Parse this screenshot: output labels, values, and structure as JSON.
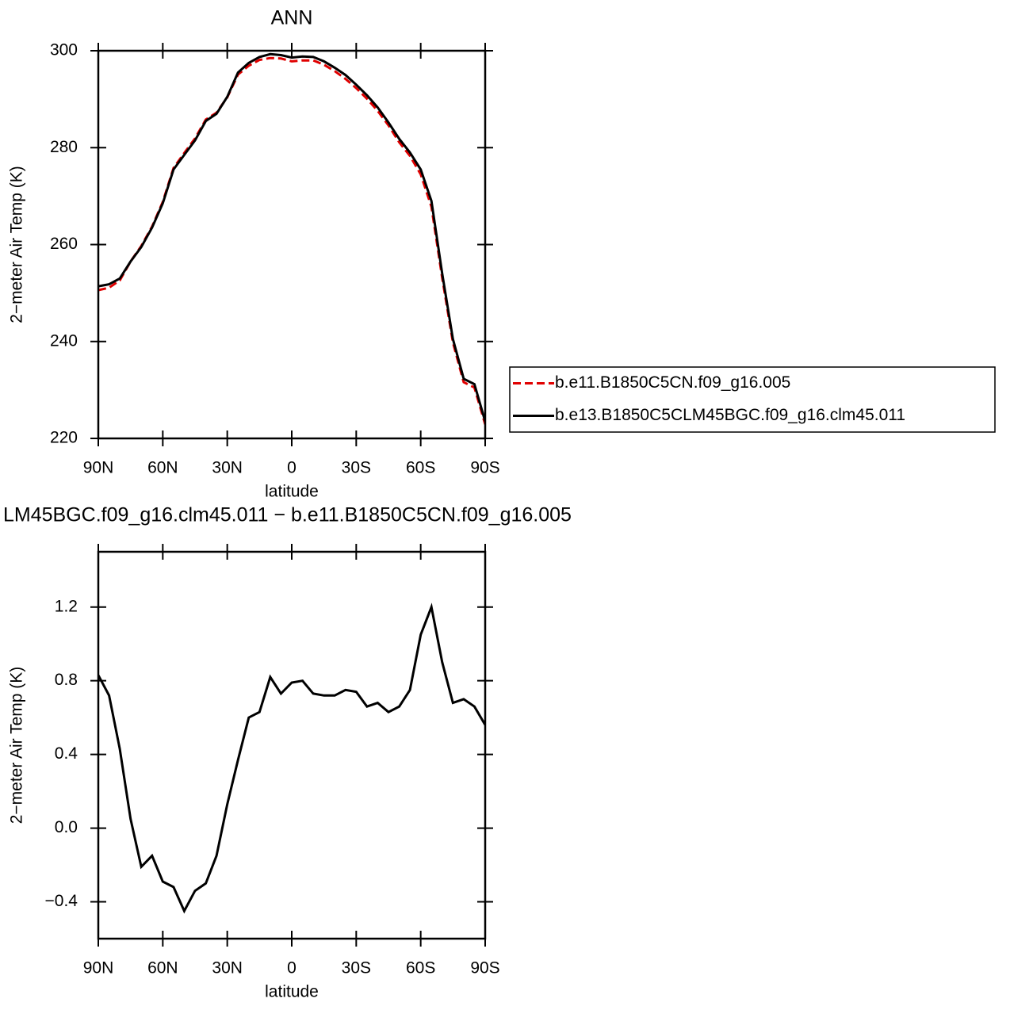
{
  "chart_data": [
    {
      "type": "line",
      "title": "ANN",
      "xlabel": "latitude",
      "ylabel": "2−meter Air Temp (K)",
      "x": [
        90,
        85,
        80,
        75,
        70,
        65,
        60,
        55,
        50,
        45,
        40,
        35,
        30,
        25,
        20,
        15,
        10,
        5,
        0,
        -5,
        -10,
        -15,
        -20,
        -25,
        -30,
        -35,
        -40,
        -45,
        -50,
        -55,
        -60,
        -65,
        -70,
        -75,
        -80,
        -85,
        -90
      ],
      "series": [
        {
          "name": "b.e11.B1850C5CN.f09_g16.005",
          "color": "#e00000",
          "dashed": true,
          "values": [
            250.6,
            251.1,
            252.6,
            256.5,
            259.7,
            263.7,
            268.8,
            275.8,
            278.9,
            281.9,
            285.8,
            287.2,
            290.4,
            295.1,
            296.9,
            298.1,
            298.5,
            298.4,
            297.8,
            298.0,
            298.0,
            297.1,
            295.8,
            294.2,
            292.3,
            290.1,
            287.6,
            284.6,
            281.1,
            278.3,
            274.5,
            267.8,
            253.1,
            239.8,
            231.6,
            230.5,
            222.9
          ]
        },
        {
          "name": "b.e13.B1850C5CLM45BGC.f09_g16.clm45.011",
          "color": "#000000",
          "dashed": false,
          "values": [
            251.4,
            251.8,
            253.0,
            256.5,
            259.5,
            263.5,
            268.5,
            275.5,
            278.5,
            281.5,
            285.5,
            287.0,
            290.5,
            295.5,
            297.5,
            298.7,
            299.3,
            299.1,
            298.6,
            298.8,
            298.7,
            297.8,
            296.5,
            295.0,
            293.0,
            290.8,
            288.3,
            285.2,
            281.8,
            279.0,
            275.5,
            269.0,
            254.0,
            240.5,
            232.3,
            231.2,
            223.5
          ]
        }
      ],
      "xlim": [
        90,
        -90
      ],
      "xticks": [
        {
          "value": 90,
          "label": "90N"
        },
        {
          "value": 60,
          "label": "60N"
        },
        {
          "value": 30,
          "label": "30N"
        },
        0,
        {
          "value": -30,
          "label": "30S"
        },
        {
          "value": -60,
          "label": "60S"
        },
        {
          "value": -90,
          "label": "90S"
        }
      ],
      "ylim": [
        220,
        300
      ],
      "yticks": [
        220,
        240,
        260,
        280,
        300
      ],
      "legend": "right"
    },
    {
      "type": "line",
      "title": "LM45BGC.f09_g16.clm45.011 − b.e11.B1850C5CN.f09_g16.005",
      "xlabel": "latitude",
      "ylabel": "2−meter Air Temp (K)",
      "x": [
        90,
        85,
        80,
        75,
        70,
        65,
        60,
        55,
        50,
        45,
        40,
        35,
        30,
        25,
        20,
        15,
        10,
        5,
        0,
        -5,
        -10,
        -15,
        -20,
        -25,
        -30,
        -35,
        -40,
        -45,
        -50,
        -55,
        -60,
        -65,
        -70,
        -75,
        -80,
        -85,
        -90
      ],
      "series": [
        {
          "color": "#000000",
          "dashed": false,
          "values": [
            0.83,
            0.72,
            0.43,
            0.05,
            -0.21,
            -0.15,
            -0.29,
            -0.32,
            -0.45,
            -0.34,
            -0.3,
            -0.15,
            0.13,
            0.37,
            0.6,
            0.63,
            0.82,
            0.73,
            0.79,
            0.8,
            0.73,
            0.72,
            0.72,
            0.75,
            0.74,
            0.66,
            0.68,
            0.63,
            0.66,
            0.75,
            1.05,
            1.2,
            0.9,
            0.68,
            0.7,
            0.66,
            0.56
          ]
        }
      ],
      "xlim": [
        90,
        -90
      ],
      "xticks": [
        {
          "value": 90,
          "label": "90N"
        },
        {
          "value": 60,
          "label": "60N"
        },
        {
          "value": 30,
          "label": "30N"
        },
        0,
        {
          "value": -30,
          "label": "30S"
        },
        {
          "value": -60,
          "label": "60S"
        },
        {
          "value": -90,
          "label": "90S"
        }
      ],
      "ylim": [
        -0.6,
        1.5
      ],
      "yticks": [
        {
          "value": -0.4,
          "label": "−0.4"
        },
        {
          "value": 0,
          "label": "0.0"
        },
        0.4,
        0.8,
        1.2
      ]
    }
  ]
}
